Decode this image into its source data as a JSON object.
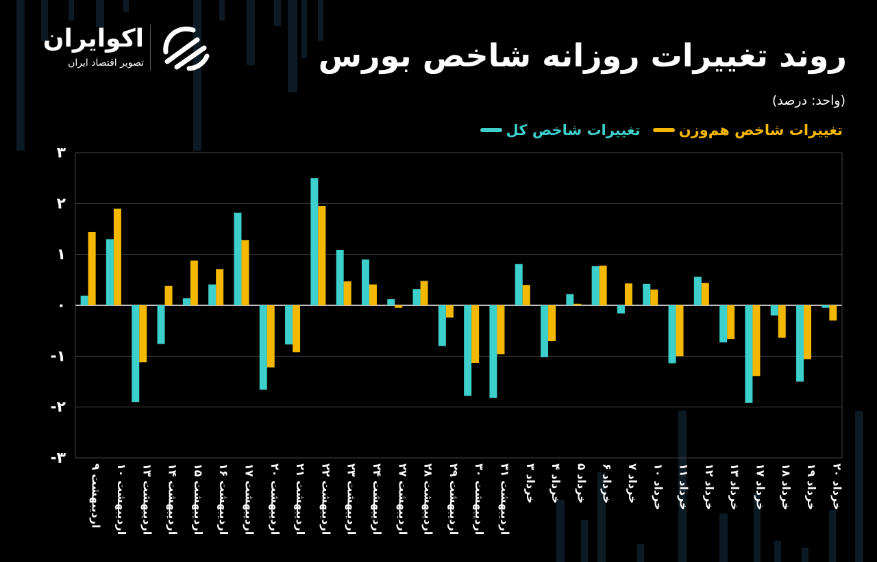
{
  "title": "روند تغییرات روزانه شاخص بورس",
  "unit": "(واحد: درصد)",
  "brand": {
    "name": "اکوایران",
    "tagline": "تصویر اقتصاد ایران"
  },
  "colors": {
    "background": "#000000",
    "series_total": "#3ccfcb",
    "series_equal": "#f5b800",
    "grid": "#444444",
    "axis": "#ffffff"
  },
  "chart_data": {
    "type": "bar",
    "ylim": [
      -3,
      3
    ],
    "yticks": [
      3,
      2,
      1,
      0,
      -1,
      -2,
      -3
    ],
    "ytick_labels": [
      "۳",
      "۲",
      "۱",
      "۰",
      "-۱",
      "-۲",
      "-۳"
    ],
    "grid": true,
    "legend_position": "top-right",
    "categories": [
      "۹ اردیبهشت",
      "۱۰ اردیبهشت",
      "۱۳ اردیبهشت",
      "۱۴ اردیبهشت",
      "۱۵ اردیبهشت",
      "۱۶ اردیبهشت",
      "۱۷ اردیبهشت",
      "۲۰ اردیبهشت",
      "۲۱ اردیبهشت",
      "۲۲ اردیبهشت",
      "۲۳ اردیبهشت",
      "۲۴ اردیبهشت",
      "۲۷ اردیبهشت",
      "۲۸ اردیبهشت",
      "۲۹ اردیبهشت",
      "۳۰ اردیبهشت",
      "۳۱ اردیبهشت",
      "۳ خرداد",
      "۴ خرداد",
      "۵ خرداد",
      "۶ خرداد",
      "۷ خرداد",
      "۱۰ خرداد",
      "۱۱ خرداد",
      "۱۲ خرداد",
      "۱۳ خرداد",
      "۱۷ خرداد",
      "۱۸ خرداد",
      "۱۹ خرداد",
      "۲۰ خرداد"
    ],
    "series": [
      {
        "name": "تغییرات شاخص کل",
        "values": [
          0.19,
          1.3,
          -1.9,
          -0.76,
          0.14,
          0.41,
          1.82,
          -1.66,
          -0.77,
          2.5,
          1.09,
          0.9,
          0.12,
          0.32,
          -0.8,
          -1.78,
          -1.82,
          0.81,
          -1.02,
          0.22,
          0.77,
          -0.16,
          0.42,
          -1.14,
          0.56,
          -0.73,
          -1.92,
          -0.2,
          -1.5,
          -0.05
        ]
      },
      {
        "name": "تغییرات شاخص هم‌وزن",
        "values": [
          1.44,
          1.9,
          -1.12,
          0.38,
          0.88,
          0.71,
          1.28,
          -1.22,
          -0.92,
          1.95,
          0.47,
          0.41,
          -0.05,
          0.48,
          -0.24,
          -1.13,
          -0.96,
          0.4,
          -0.7,
          0.03,
          0.78,
          0.43,
          0.31,
          -1.0,
          0.44,
          -0.66,
          -1.39,
          -0.64,
          -1.06,
          -0.3
        ]
      }
    ]
  }
}
